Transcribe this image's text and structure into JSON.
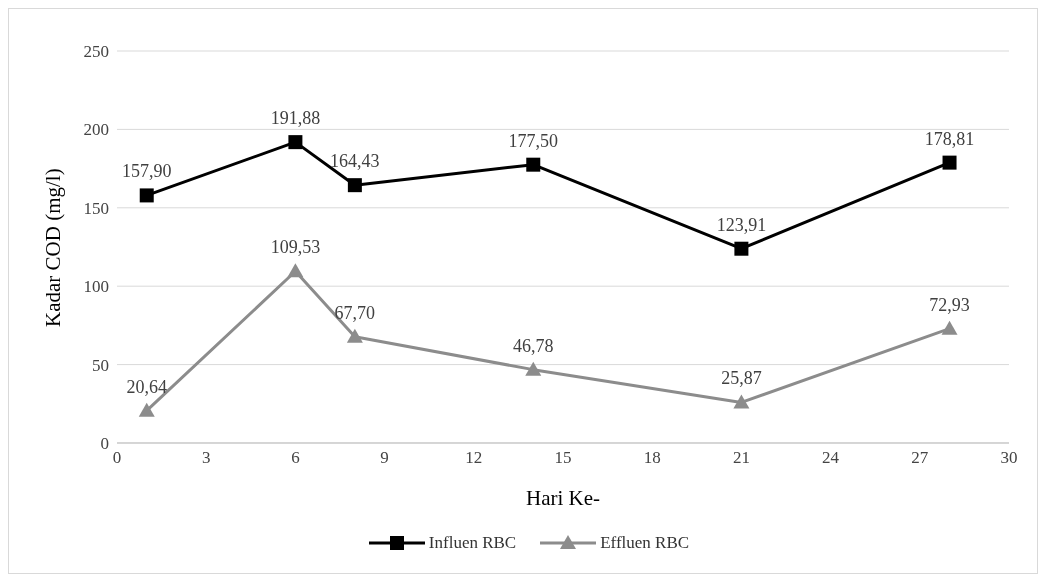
{
  "chart_data": {
    "type": "line",
    "xlabel": "Hari Ke-",
    "ylabel": "Kadar COD (mg/l)",
    "x": [
      1,
      6,
      8,
      14,
      21,
      28
    ],
    "series": [
      {
        "name": "Influen RBC",
        "color": "#000000",
        "marker": "square",
        "values": [
          157.9,
          191.88,
          164.43,
          177.5,
          123.91,
          178.81
        ],
        "value_labels": [
          "157,90",
          "191,88",
          "164,43",
          "177,50",
          "123,91",
          "178,81"
        ]
      },
      {
        "name": "Effluen RBC",
        "color": "#8c8c8c",
        "marker": "triangle",
        "values": [
          20.64,
          109.53,
          67.7,
          46.78,
          25.87,
          72.93
        ],
        "value_labels": [
          "20,64",
          "109,53",
          "67,70",
          "46,78",
          "25,87",
          "72,93"
        ]
      }
    ],
    "xlim": [
      0,
      30
    ],
    "xticks": [
      0,
      3,
      6,
      9,
      12,
      15,
      18,
      21,
      24,
      27,
      30
    ],
    "ylim": [
      0,
      250
    ],
    "yticks": [
      0,
      50,
      100,
      150,
      200,
      250
    ],
    "grid": "y",
    "legend": "bottom",
    "line_style": "solid"
  }
}
